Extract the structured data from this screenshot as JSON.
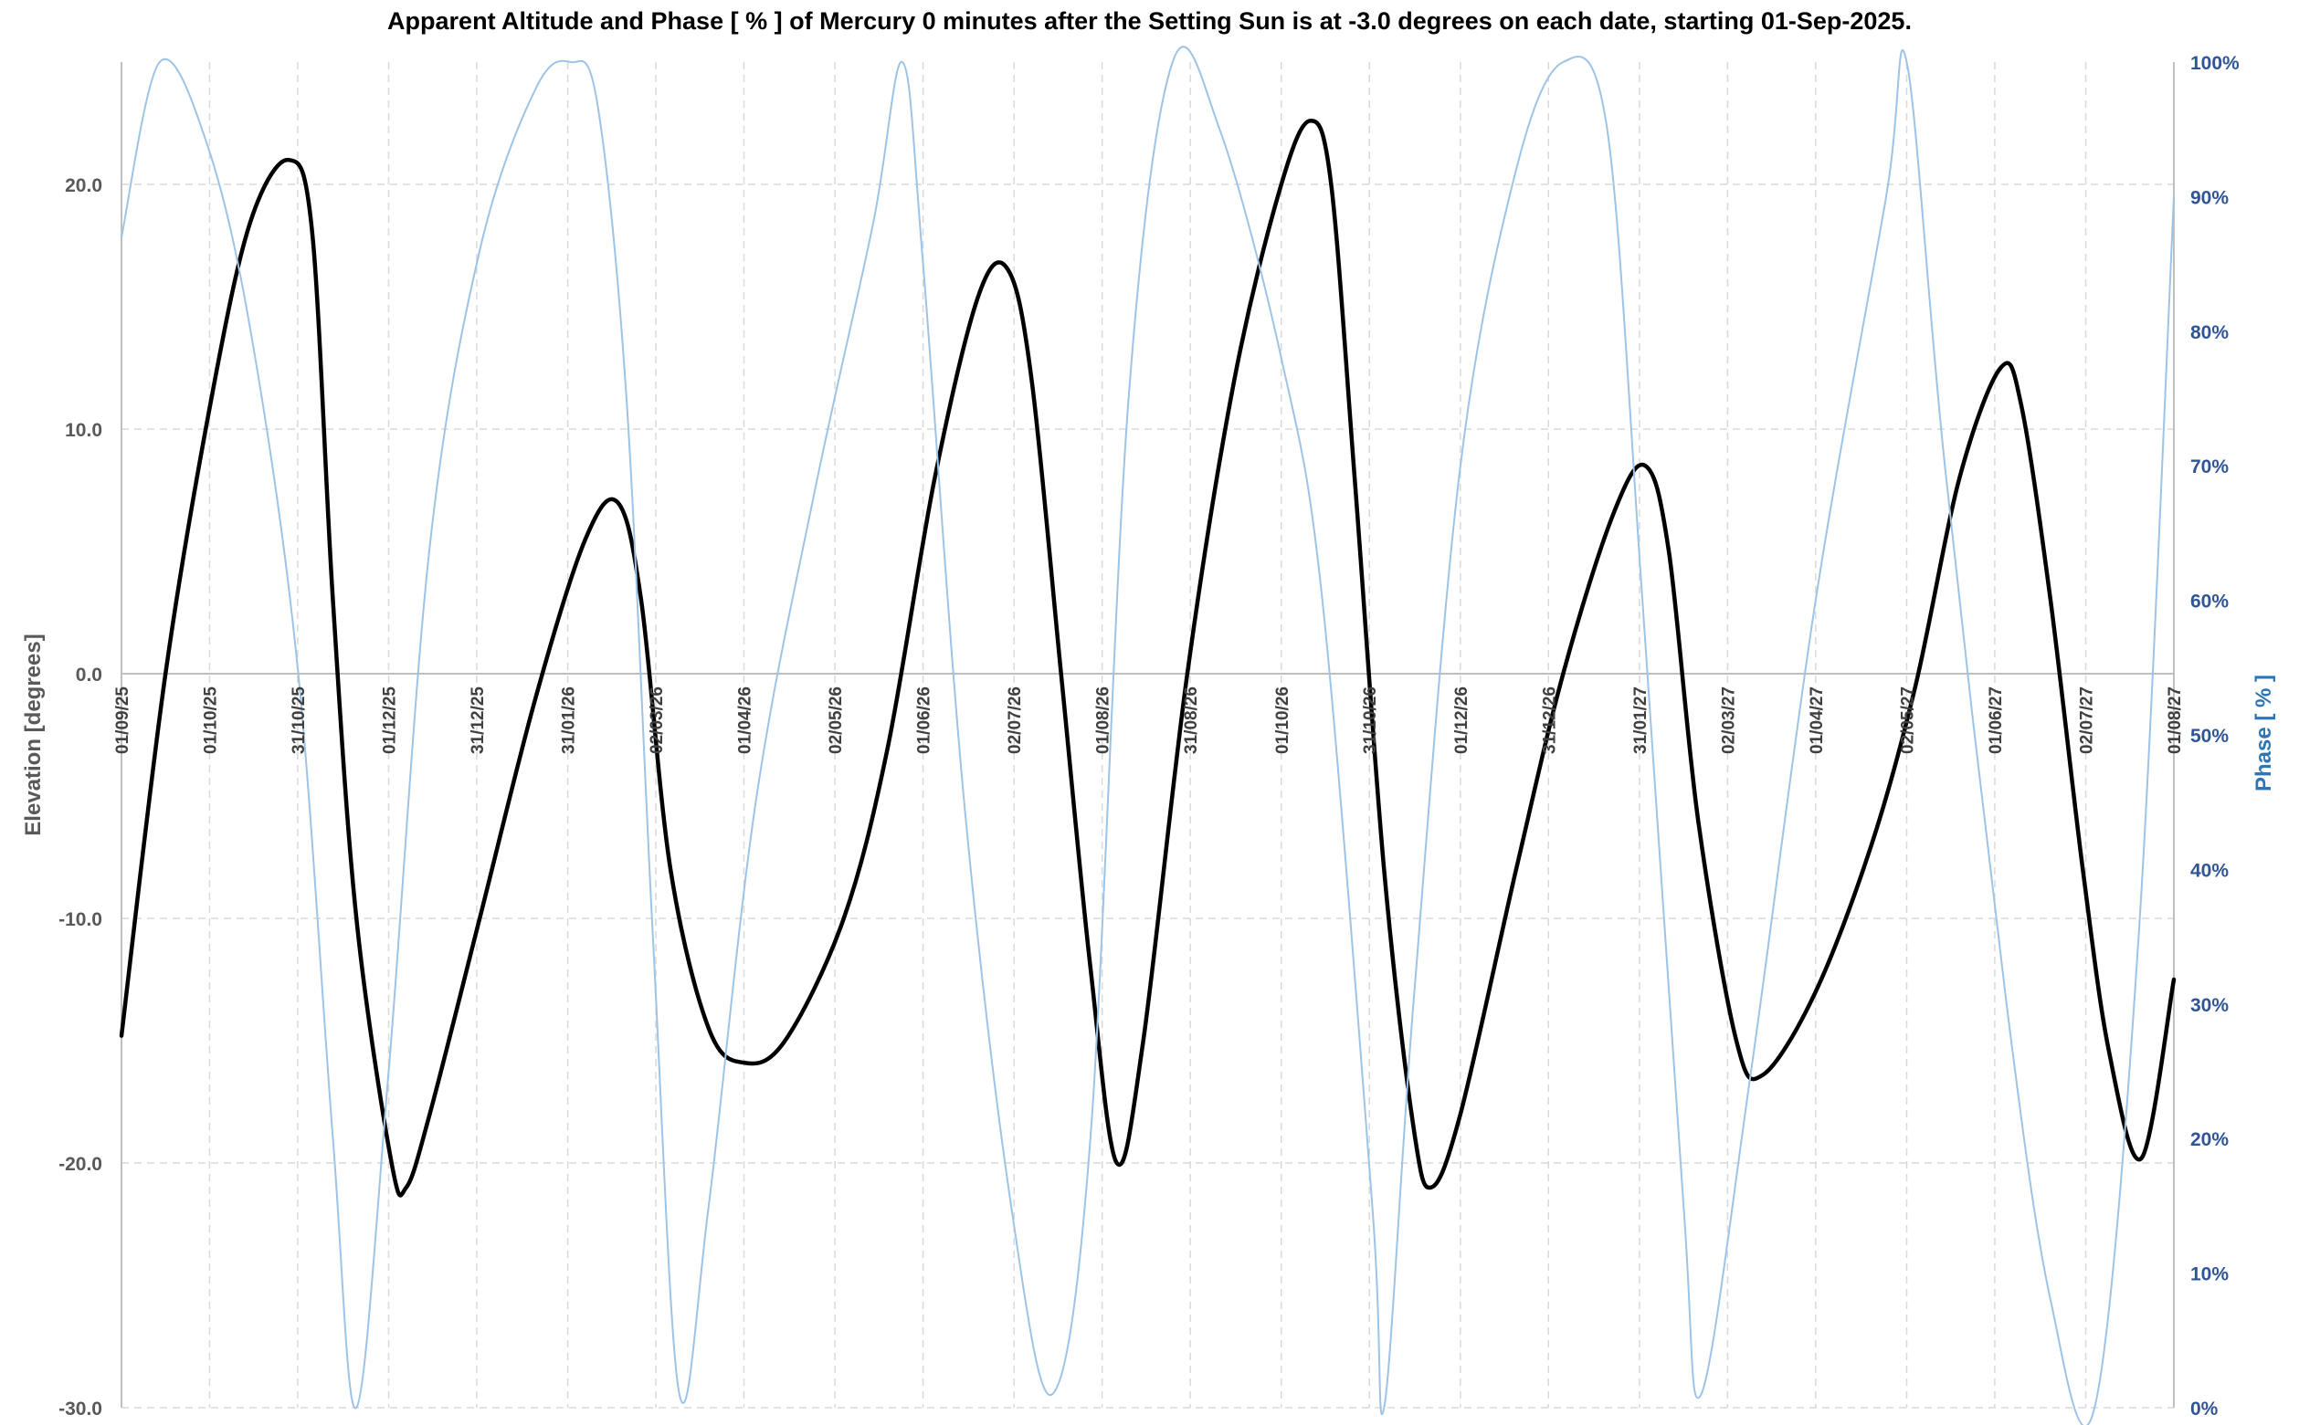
{
  "chart_data": {
    "type": "line",
    "title": "Apparent Altitude and Phase [ % ] of Mercury 0 minutes after the Setting Sun is at -3.0 degrees on each date, starting 01-Sep-2025.",
    "ylabel": "Elevation [degrees]",
    "y2label": "Phase [ % ]",
    "ylim": [
      -30,
      25
    ],
    "yticks": [
      -30,
      -20,
      -10,
      0,
      10,
      20
    ],
    "ytick_labels": [
      "-30.0",
      "-20.0",
      "-10.0",
      "0.0",
      "10.0",
      "20.0"
    ],
    "y2lim": [
      0,
      100
    ],
    "y2ticks": [
      0,
      10,
      20,
      30,
      40,
      50,
      60,
      70,
      80,
      90,
      100
    ],
    "y2tick_labels": [
      "0%",
      "10%",
      "20%",
      "30%",
      "40%",
      "50%",
      "60%",
      "70%",
      "80%",
      "90%",
      "100%"
    ],
    "xlim": [
      "2025-09-01",
      "2027-08-01"
    ],
    "x_ticks": [
      "2025-09-01",
      "2025-10-01",
      "2025-10-31",
      "2025-12-01",
      "2025-12-31",
      "2026-01-31",
      "2026-03-02",
      "2026-04-01",
      "2026-05-02",
      "2026-06-01",
      "2026-07-02",
      "2026-08-01",
      "2026-08-31",
      "2026-10-01",
      "2026-10-31",
      "2026-12-01",
      "2026-12-31",
      "2027-01-31",
      "2027-03-02",
      "2027-04-01",
      "2027-05-02",
      "2027-06-01",
      "2027-07-02",
      "2027-08-01"
    ],
    "x_tick_labels": [
      "01/09/25",
      "01/10/25",
      "31/10/25",
      "01/12/25",
      "31/12/25",
      "31/01/26",
      "02/03/26",
      "01/04/26",
      "02/05/26",
      "01/06/26",
      "02/07/26",
      "01/08/26",
      "31/08/26",
      "01/10/26",
      "31/10/26",
      "01/12/26",
      "31/12/26",
      "31/01/27",
      "02/03/27",
      "01/04/27",
      "02/05/27",
      "01/06/27",
      "02/07/27",
      "01/08/27"
    ],
    "grid": true,
    "series": [
      {
        "axis": "left",
        "color": "#000000",
        "points": [
          [
            "2025-09-01",
            -14.8
          ],
          [
            "2025-09-16",
            0.0
          ],
          [
            "2025-10-02",
            11.5
          ],
          [
            "2025-10-15",
            18.5
          ],
          [
            "2025-10-28",
            21.0
          ],
          [
            "2025-11-05",
            18.0
          ],
          [
            "2025-11-12",
            3.0
          ],
          [
            "2025-11-20",
            -10.0
          ],
          [
            "2025-12-02",
            -20.0
          ],
          [
            "2025-12-07",
            -21.0
          ],
          [
            "2025-12-15",
            -18.0
          ],
          [
            "2026-01-01",
            -10.0
          ],
          [
            "2026-01-20",
            -1.0
          ],
          [
            "2026-02-06",
            5.5
          ],
          [
            "2026-02-17",
            7.0
          ],
          [
            "2026-02-25",
            3.0
          ],
          [
            "2026-03-07",
            -8.0
          ],
          [
            "2026-03-20",
            -14.5
          ],
          [
            "2026-04-01",
            -15.9
          ],
          [
            "2026-04-15",
            -15.0
          ],
          [
            "2026-05-05",
            -10.0
          ],
          [
            "2026-05-20",
            -3.0
          ],
          [
            "2026-06-05",
            8.0
          ],
          [
            "2026-06-20",
            15.5
          ],
          [
            "2026-06-30",
            16.5
          ],
          [
            "2026-07-08",
            12.0
          ],
          [
            "2026-07-18",
            0.0
          ],
          [
            "2026-07-28",
            -12.0
          ],
          [
            "2026-08-06",
            -20.0
          ],
          [
            "2026-08-15",
            -15.0
          ],
          [
            "2026-08-30",
            0.0
          ],
          [
            "2026-09-15",
            12.0
          ],
          [
            "2026-10-01",
            20.0
          ],
          [
            "2026-10-11",
            22.6
          ],
          [
            "2026-10-18",
            20.0
          ],
          [
            "2026-10-26",
            8.0
          ],
          [
            "2026-11-05",
            -8.0
          ],
          [
            "2026-11-15",
            -18.5
          ],
          [
            "2026-11-21",
            -21.0
          ],
          [
            "2026-12-01",
            -18.0
          ],
          [
            "2026-12-20",
            -8.0
          ],
          [
            "2027-01-05",
            0.0
          ],
          [
            "2027-01-22",
            6.5
          ],
          [
            "2027-02-02",
            8.5
          ],
          [
            "2027-02-10",
            5.0
          ],
          [
            "2027-02-20",
            -6.0
          ],
          [
            "2027-03-05",
            -15.0
          ],
          [
            "2027-03-14",
            -16.4
          ],
          [
            "2027-04-01",
            -13.0
          ],
          [
            "2027-04-20",
            -7.0
          ],
          [
            "2027-05-05",
            -0.5
          ],
          [
            "2027-05-20",
            8.0
          ],
          [
            "2027-06-03",
            12.5
          ],
          [
            "2027-06-10",
            11.0
          ],
          [
            "2027-06-20",
            3.0
          ],
          [
            "2027-07-01",
            -8.0
          ],
          [
            "2027-07-10",
            -15.5
          ],
          [
            "2027-07-21",
            -19.8
          ],
          [
            "2027-08-01",
            -12.5
          ]
        ]
      },
      {
        "axis": "right",
        "color": "#9dc3e6",
        "points": [
          [
            "2025-09-01",
            87
          ],
          [
            "2025-09-14",
            100
          ],
          [
            "2025-09-30",
            94
          ],
          [
            "2025-10-15",
            80
          ],
          [
            "2025-10-31",
            55
          ],
          [
            "2025-11-12",
            20
          ],
          [
            "2025-11-20",
            0
          ],
          [
            "2025-12-01",
            25
          ],
          [
            "2025-12-15",
            64
          ],
          [
            "2026-01-01",
            86
          ],
          [
            "2026-01-20",
            98
          ],
          [
            "2026-02-01",
            100
          ],
          [
            "2026-02-10",
            97
          ],
          [
            "2026-02-20",
            75
          ],
          [
            "2026-03-01",
            35
          ],
          [
            "2026-03-10",
            1
          ],
          [
            "2026-03-20",
            15
          ],
          [
            "2026-04-05",
            45
          ],
          [
            "2026-04-25",
            68
          ],
          [
            "2026-05-15",
            88
          ],
          [
            "2026-05-25",
            100
          ],
          [
            "2026-06-01",
            85
          ],
          [
            "2026-06-15",
            45
          ],
          [
            "2026-07-01",
            15
          ],
          [
            "2026-07-15",
            1
          ],
          [
            "2026-07-28",
            20
          ],
          [
            "2026-08-10",
            75
          ],
          [
            "2026-08-25",
            100
          ],
          [
            "2026-09-10",
            95
          ],
          [
            "2026-10-01",
            78
          ],
          [
            "2026-10-15",
            60
          ],
          [
            "2026-11-01",
            15
          ],
          [
            "2026-11-05",
            0
          ],
          [
            "2026-11-15",
            30
          ],
          [
            "2026-12-01",
            70
          ],
          [
            "2026-12-20",
            92
          ],
          [
            "2027-01-05",
            100
          ],
          [
            "2027-01-20",
            95
          ],
          [
            "2027-02-01",
            60
          ],
          [
            "2027-02-15",
            15
          ],
          [
            "2027-02-21",
            1
          ],
          [
            "2027-03-10",
            25
          ],
          [
            "2027-04-01",
            60
          ],
          [
            "2027-04-25",
            90
          ],
          [
            "2027-05-02",
            100
          ],
          [
            "2027-05-15",
            70
          ],
          [
            "2027-06-05",
            30
          ],
          [
            "2027-06-20",
            8
          ],
          [
            "2027-07-05",
            0
          ],
          [
            "2027-07-20",
            35
          ],
          [
            "2027-08-01",
            90
          ]
        ]
      }
    ]
  }
}
